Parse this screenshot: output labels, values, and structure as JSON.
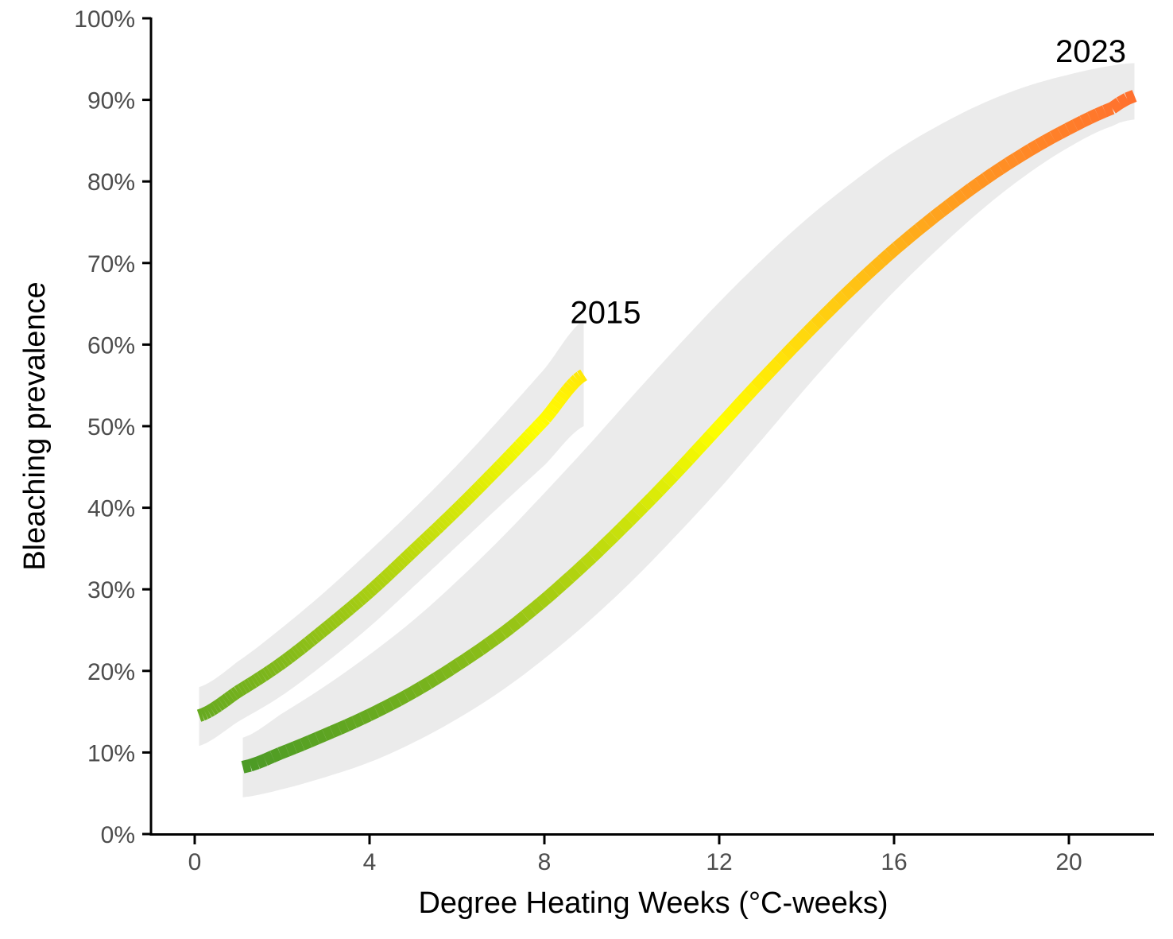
{
  "chart_data": {
    "type": "line",
    "xlabel": "Degree Heating Weeks (°C-weeks)",
    "ylabel": "Bleaching prevalence",
    "xlim": [
      -1,
      22
    ],
    "ylim": [
      0,
      1
    ],
    "x_ticks": [
      0,
      4,
      8,
      12,
      16,
      20
    ],
    "x_tick_labels": [
      "0",
      "4",
      "8",
      "12",
      "16",
      "20"
    ],
    "y_ticks": [
      0,
      0.1,
      0.2,
      0.3,
      0.4,
      0.5,
      0.6,
      0.7,
      0.8,
      0.9,
      1.0
    ],
    "y_tick_labels": [
      "0%",
      "10%",
      "20%",
      "30%",
      "40%",
      "50%",
      "60%",
      "70%",
      "80%",
      "90%",
      "100%"
    ],
    "grid": false,
    "legend": "none",
    "band_color": "#ebebeb",
    "color_scale": {
      "domain": [
        0.08,
        0.5,
        0.92
      ],
      "colors": [
        "#4b9a26",
        "#ffff00",
        "#ff6a30"
      ]
    },
    "annotations": [
      {
        "text": "2015",
        "x": 9.4,
        "y": 0.64
      },
      {
        "text": "2023",
        "x": 20.5,
        "y": 0.96
      }
    ],
    "series": [
      {
        "label": "2015",
        "x": [
          0.1,
          1,
          2,
          3,
          4,
          5,
          6,
          7,
          8,
          8.9
        ],
        "y": [
          0.145,
          0.175,
          0.21,
          0.252,
          0.297,
          0.347,
          0.398,
          0.452,
          0.508,
          0.563
        ],
        "lower": [
          0.108,
          0.138,
          0.17,
          0.21,
          0.254,
          0.303,
          0.353,
          0.403,
          0.452,
          0.5
        ],
        "upper": [
          0.18,
          0.212,
          0.253,
          0.298,
          0.347,
          0.398,
          0.452,
          0.51,
          0.57,
          0.63
        ]
      },
      {
        "label": "2023",
        "x": [
          1.1,
          2,
          3,
          4,
          5,
          6,
          7,
          8,
          9,
          10,
          11,
          12,
          13,
          14,
          15,
          16,
          17,
          18,
          19,
          20,
          21,
          21.5
        ],
        "y": [
          0.082,
          0.1,
          0.122,
          0.146,
          0.174,
          0.207,
          0.244,
          0.287,
          0.335,
          0.387,
          0.442,
          0.5,
          0.558,
          0.614,
          0.667,
          0.716,
          0.76,
          0.8,
          0.835,
          0.865,
          0.89,
          0.905
        ],
        "lower": [
          0.045,
          0.055,
          0.07,
          0.088,
          0.112,
          0.141,
          0.175,
          0.215,
          0.26,
          0.31,
          0.365,
          0.423,
          0.485,
          0.548,
          0.608,
          0.665,
          0.717,
          0.765,
          0.807,
          0.842,
          0.868,
          0.876
        ],
        "upper": [
          0.118,
          0.148,
          0.182,
          0.22,
          0.262,
          0.31,
          0.362,
          0.418,
          0.476,
          0.536,
          0.595,
          0.652,
          0.705,
          0.754,
          0.797,
          0.836,
          0.868,
          0.895,
          0.916,
          0.931,
          0.942,
          0.945
        ]
      }
    ]
  }
}
